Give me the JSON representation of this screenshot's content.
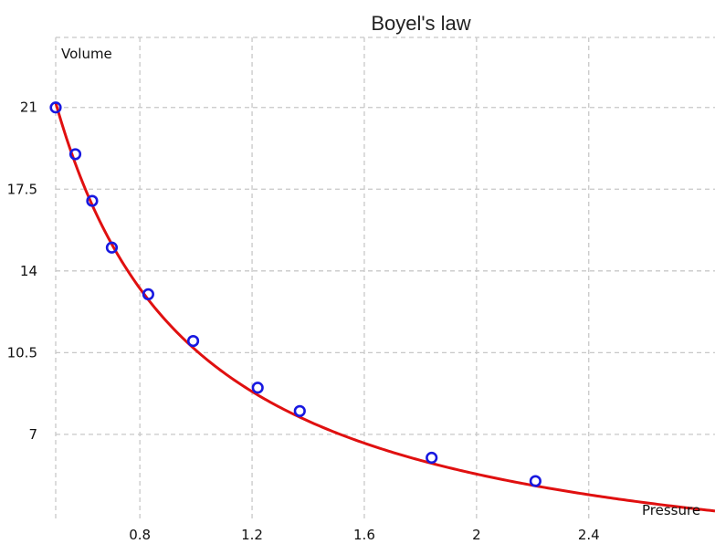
{
  "chart_data": {
    "type": "scatter",
    "title": "Boyel's law",
    "xlabel": "Pressure",
    "ylabel": "Volume",
    "xlim": [
      0.5,
      2.85
    ],
    "ylim": [
      3.4,
      24.0
    ],
    "xticks": [
      0.8,
      1.2,
      1.6,
      2.0,
      2.4
    ],
    "xtick_labels": [
      "0.8",
      "1.2",
      "1.6",
      "2",
      "2.4"
    ],
    "yticks": [
      7,
      10.5,
      14,
      17.5,
      21
    ],
    "ytick_labels": [
      "7",
      "10.5",
      "14",
      "17.5",
      "21"
    ],
    "grid": true,
    "series": [
      {
        "kind": "scatter",
        "marker": "circle",
        "color": "#1818e0",
        "x": [
          0.5,
          0.57,
          0.63,
          0.7,
          0.83,
          0.99,
          1.22,
          1.37,
          1.84,
          2.21
        ],
        "y": [
          21.0,
          19.0,
          17.0,
          15.0,
          13.0,
          11.0,
          9.0,
          8.0,
          6.0,
          5.0
        ]
      },
      {
        "kind": "line",
        "fit": "y = k / x",
        "k": 10.6,
        "color": "#e01010",
        "x_range": [
          0.5,
          2.85
        ]
      }
    ]
  }
}
